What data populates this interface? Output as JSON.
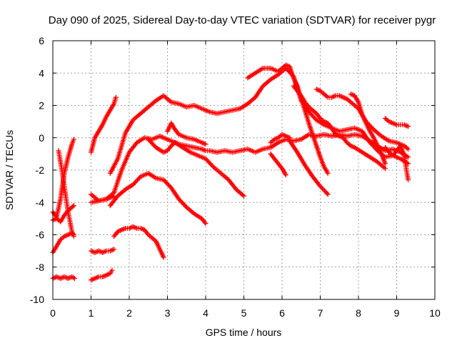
{
  "chart_data": {
    "type": "scatter",
    "title": "Day 090 of 2025, Sidereal Day-to-day VTEC variation (SDTVAR) for receiver pygr",
    "xlabel": "GPS time / hours",
    "ylabel": "SDTVAR / TECUs",
    "xlim": [
      0,
      10
    ],
    "ylim": [
      -10,
      6
    ],
    "xticks": [
      "0",
      "1",
      "2",
      "3",
      "4",
      "5",
      "6",
      "7",
      "8",
      "9",
      "10"
    ],
    "yticks": [
      "-10",
      "-8",
      "-6",
      "-4",
      "-2",
      "0",
      "2",
      "4",
      "6"
    ],
    "grid": true,
    "marker": "+",
    "color": "#ff0000",
    "series": [
      {
        "name": "s1",
        "x": [
          0.0,
          0.1,
          0.2,
          0.3,
          0.4,
          0.5,
          0.55
        ],
        "y": [
          -4.6,
          -4.9,
          -3.8,
          -2.2,
          -1.2,
          -0.4,
          -0.1
        ]
      },
      {
        "name": "s2",
        "x": [
          0.15,
          0.2,
          0.25,
          0.3,
          0.35,
          0.4,
          0.45,
          0.5,
          0.55
        ],
        "y": [
          -0.8,
          -1.5,
          -2.2,
          -3.0,
          -3.8,
          -4.6,
          -5.2,
          -5.8,
          -6.1
        ]
      },
      {
        "name": "s3",
        "x": [
          0.0,
          0.1,
          0.2,
          0.3,
          0.4,
          0.5,
          0.55
        ],
        "y": [
          -5.1,
          -5.0,
          -5.2,
          -4.8,
          -4.5,
          -4.3,
          -4.2
        ]
      },
      {
        "name": "s4",
        "x": [
          0.0,
          0.1,
          0.2,
          0.3,
          0.4,
          0.5,
          0.55
        ],
        "y": [
          -7.1,
          -6.7,
          -6.3,
          -6.1,
          -6.0,
          -5.9,
          -6.0
        ]
      },
      {
        "name": "s5",
        "x": [
          0.0,
          0.1,
          0.2,
          0.3,
          0.4,
          0.5,
          0.57
        ],
        "y": [
          -8.7,
          -8.6,
          -8.7,
          -8.6,
          -8.7,
          -8.6,
          -8.7
        ]
      },
      {
        "name": "s6",
        "x": [
          1.0,
          1.1,
          1.2,
          1.3,
          1.4,
          1.5,
          1.6,
          1.65
        ],
        "y": [
          -0.9,
          0.0,
          0.4,
          0.8,
          1.3,
          1.7,
          2.1,
          2.5
        ]
      },
      {
        "name": "s7",
        "x": [
          1.0,
          1.2,
          1.4,
          1.6,
          1.8,
          2.0,
          2.2,
          2.4,
          2.6,
          2.8,
          2.9,
          3.1,
          3.3,
          3.5,
          3.7,
          3.9,
          4.0,
          4.1,
          4.3,
          4.5,
          4.7,
          4.9,
          5.1,
          5.3,
          5.5,
          5.7,
          5.9,
          6.1,
          6.3,
          6.5,
          6.7,
          6.9,
          7.1,
          7.3,
          7.5,
          7.7,
          7.9,
          8.1,
          8.3,
          8.5,
          8.7,
          8.9,
          9.1,
          9.3
        ],
        "y": [
          -3.5,
          -3.9,
          -3.8,
          -3.4,
          -2.0,
          -0.9,
          -0.3,
          0.0,
          -0.1,
          0.1,
          0.0,
          -0.2,
          -0.4,
          -0.5,
          -0.6,
          -0.7,
          -0.8,
          -0.8,
          -0.9,
          -0.8,
          -0.9,
          -0.8,
          -0.7,
          -0.9,
          -0.7,
          -0.6,
          -0.3,
          -0.1,
          -0.2,
          -0.1,
          0.2,
          0.1,
          0.2,
          0.1,
          0.2,
          0.1,
          0.2,
          0.1,
          -0.2,
          -0.5,
          -0.8,
          -0.7,
          -0.9,
          -1.2
        ]
      },
      {
        "name": "s8",
        "x": [
          1.0,
          1.2,
          1.4,
          1.5,
          1.6
        ],
        "y": [
          -4.0,
          -3.9,
          -3.8,
          -3.7,
          -3.6
        ]
      },
      {
        "name": "s9",
        "x": [
          1.0,
          1.1,
          1.2,
          1.3,
          1.4,
          1.5,
          1.6
        ],
        "y": [
          -7.0,
          -7.1,
          -7.0,
          -7.1,
          -7.0,
          -7.0,
          -6.9
        ]
      },
      {
        "name": "s10",
        "x": [
          1.0,
          1.1,
          1.2,
          1.3,
          1.4,
          1.5,
          1.55
        ],
        "y": [
          -8.8,
          -8.7,
          -8.6,
          -8.6,
          -8.5,
          -8.4,
          -8.2
        ]
      },
      {
        "name": "s11",
        "x": [
          1.5,
          1.7,
          1.9,
          2.1,
          2.3,
          2.5,
          2.7,
          2.9,
          3.1,
          3.3,
          3.5,
          3.7,
          3.9,
          4.0
        ],
        "y": [
          -4.2,
          -3.6,
          -3.2,
          -2.9,
          -2.4,
          -2.2,
          -2.5,
          -2.6,
          -3.1,
          -3.8,
          -4.3,
          -4.7,
          -5.0,
          -5.3
        ]
      },
      {
        "name": "s12",
        "x": [
          1.6,
          1.7,
          1.8,
          1.9,
          2.0,
          2.1,
          2.2,
          2.3,
          2.4,
          2.5,
          2.6,
          2.7,
          2.8,
          2.9
        ],
        "y": [
          -6.1,
          -5.8,
          -5.7,
          -5.6,
          -5.6,
          -5.5,
          -5.6,
          -5.6,
          -5.7,
          -6.0,
          -6.2,
          -6.4,
          -6.9,
          -7.4
        ]
      },
      {
        "name": "s13",
        "x": [
          1.5,
          1.7,
          1.9,
          2.1,
          2.3,
          2.5,
          2.7,
          2.9,
          3.1,
          3.3,
          3.5,
          3.7,
          3.9,
          4.1,
          4.3,
          4.5,
          4.7,
          4.9,
          5.1,
          5.3,
          5.5,
          5.7,
          5.9,
          6.1,
          6.3,
          6.5,
          6.7,
          6.9,
          7.1,
          7.3,
          7.5,
          7.7,
          7.9,
          8.1,
          8.3,
          8.5,
          8.7,
          8.9,
          9.1,
          9.3
        ],
        "y": [
          -2.2,
          -1.3,
          0.3,
          1.1,
          1.5,
          1.9,
          2.3,
          2.6,
          2.2,
          2.1,
          1.9,
          2.0,
          1.8,
          1.6,
          1.5,
          1.6,
          1.7,
          1.8,
          2.1,
          2.5,
          3.2,
          3.6,
          3.9,
          4.3,
          3.8,
          2.3,
          1.6,
          1.1,
          0.8,
          0.6,
          0.4,
          0.5,
          0.6,
          0.4,
          -0.3,
          -0.8,
          -1.2,
          -1.1,
          -1.3,
          -1.6
        ]
      },
      {
        "name": "s14",
        "x": [
          2.5,
          2.7,
          2.9,
          3.0,
          3.1,
          3.2,
          3.4,
          3.6,
          3.8,
          4.0,
          4.2,
          4.4,
          4.6,
          4.8,
          5.0
        ],
        "y": [
          -0.1,
          -0.6,
          -0.9,
          -0.8,
          -0.5,
          -0.3,
          -0.6,
          -0.9,
          -1.1,
          -1.3,
          -1.8,
          -2.2,
          -2.6,
          -3.2,
          -3.6
        ]
      },
      {
        "name": "s15",
        "x": [
          3.0,
          3.1,
          3.2,
          3.3,
          3.5,
          3.7,
          3.9,
          4.0
        ],
        "y": [
          0.4,
          0.9,
          0.5,
          0.2,
          0.0,
          -0.1,
          -0.3,
          -0.4
        ]
      },
      {
        "name": "s16",
        "x": [
          5.1,
          5.3,
          5.5,
          5.7,
          5.9,
          6.1,
          6.2,
          6.3,
          6.4,
          6.5,
          6.6,
          6.7,
          6.8,
          6.9,
          7.0,
          7.1,
          7.2
        ],
        "y": [
          3.7,
          4.0,
          4.3,
          4.3,
          4.1,
          4.5,
          4.4,
          3.7,
          3.2,
          2.4,
          1.7,
          0.9,
          0.2,
          -0.5,
          -1.2,
          -1.8,
          -2.2
        ]
      },
      {
        "name": "s17",
        "x": [
          5.7,
          5.8,
          5.9,
          6.0,
          6.1,
          6.2
        ],
        "y": [
          -0.3,
          -0.1,
          0.0,
          0.2,
          0.1,
          0.0
        ]
      },
      {
        "name": "s18",
        "x": [
          5.7,
          5.8,
          5.9,
          6.0,
          6.1
        ],
        "y": [
          -1.0,
          -1.3,
          -1.6,
          -1.9,
          -2.3
        ]
      },
      {
        "name": "s19",
        "x": [
          6.2,
          6.4,
          6.6,
          6.8,
          7.0,
          7.2
        ],
        "y": [
          -0.2,
          -0.9,
          -1.7,
          -2.4,
          -3.0,
          -3.5
        ]
      },
      {
        "name": "s20",
        "x": [
          6.3,
          6.5,
          6.6,
          6.7,
          6.8,
          6.9,
          7.0,
          7.1,
          7.2,
          7.3,
          7.4,
          7.5,
          7.6,
          7.7,
          7.8,
          7.9,
          8.1,
          8.3,
          8.5,
          8.7
        ],
        "y": [
          3.2,
          2.6,
          2.2,
          1.9,
          1.7,
          1.5,
          1.2,
          1.0,
          0.9,
          0.6,
          0.2,
          0.1,
          0.0,
          -0.3,
          -0.5,
          -0.6,
          -0.9,
          -1.2,
          -1.5,
          -1.9
        ]
      },
      {
        "name": "s21",
        "x": [
          6.9,
          7.0,
          7.1,
          7.2,
          7.3,
          7.4,
          7.5,
          7.6,
          7.7,
          7.8,
          8.0,
          8.2,
          8.4,
          8.6,
          8.8,
          9.0,
          9.2,
          9.3
        ],
        "y": [
          3.0,
          2.9,
          2.7,
          2.5,
          2.5,
          2.6,
          2.6,
          2.5,
          2.4,
          2.2,
          1.8,
          1.0,
          0.5,
          0.1,
          -0.2,
          -0.3,
          -0.5,
          -0.7
        ]
      },
      {
        "name": "s22",
        "x": [
          7.8,
          7.9,
          8.0,
          8.1,
          8.2,
          8.3,
          8.4,
          8.5,
          8.6,
          8.7
        ],
        "y": [
          2.7,
          2.6,
          2.2,
          1.4,
          0.9,
          0.4,
          0.0,
          -0.5,
          -1.0,
          -1.6
        ]
      },
      {
        "name": "s23",
        "x": [
          8.7,
          8.8,
          8.9,
          9.0,
          9.1,
          9.2,
          9.3
        ],
        "y": [
          1.2,
          1.0,
          0.9,
          0.8,
          0.8,
          0.8,
          0.7
        ]
      },
      {
        "name": "s24",
        "x": [
          8.7,
          8.8,
          8.9,
          9.0,
          9.1,
          9.2,
          9.25,
          9.3
        ],
        "y": [
          -0.6,
          -0.9,
          -1.1,
          -0.8,
          -0.5,
          -1.1,
          -1.9,
          -2.6
        ]
      }
    ]
  }
}
